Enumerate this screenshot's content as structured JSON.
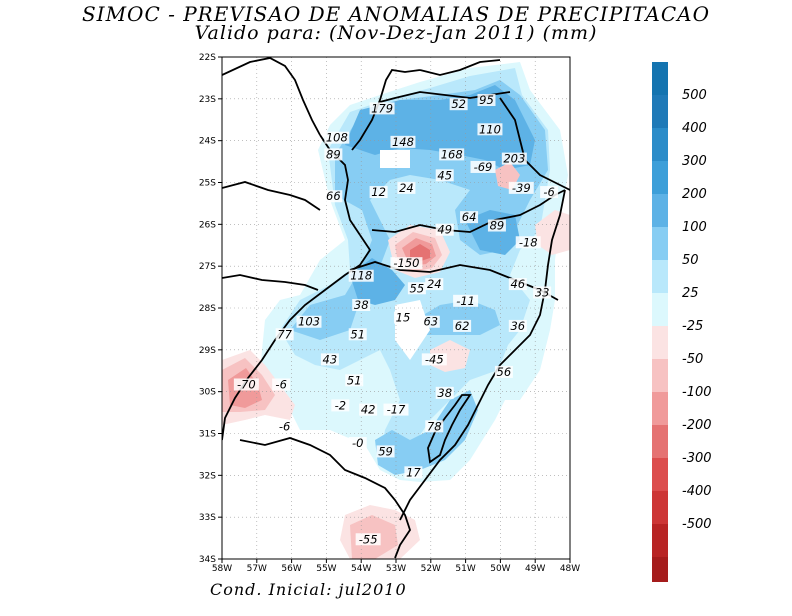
{
  "header": {
    "title": "SIMOC - PREVISAO DE ANOMALIAS DE PRECIPITACAO",
    "subtitle": "Valido para: (Nov-Dez-Jan 2011) (mm)"
  },
  "footer": {
    "text": "Cond. Inicial: jul2010"
  },
  "map": {
    "lat_labels": [
      "22S",
      "23S",
      "24S",
      "25S",
      "26S",
      "27S",
      "28S",
      "29S",
      "30S",
      "31S",
      "32S",
      "33S",
      "34S"
    ],
    "lon_labels": [
      "58W",
      "57W",
      "56W",
      "55W",
      "54W",
      "53W",
      "52W",
      "51W",
      "50W",
      "49W",
      "48W"
    ],
    "contour_labels": [
      {
        "text": "179",
        "lon": -53.4,
        "lat": -23.3
      },
      {
        "text": "52",
        "lon": -51.2,
        "lat": -23.2
      },
      {
        "text": "95",
        "lon": -50.4,
        "lat": -23.1
      },
      {
        "text": "110",
        "lon": -50.3,
        "lat": -23.8
      },
      {
        "text": "108",
        "lon": -54.7,
        "lat": -24.0
      },
      {
        "text": "89",
        "lon": -54.8,
        "lat": -24.4
      },
      {
        "text": "148",
        "lon": -52.8,
        "lat": -24.1
      },
      {
        "text": "168",
        "lon": -51.4,
        "lat": -24.4
      },
      {
        "text": "203",
        "lon": -49.6,
        "lat": -24.5
      },
      {
        "text": "-69",
        "lon": -50.5,
        "lat": -24.7
      },
      {
        "text": "45",
        "lon": -51.6,
        "lat": -24.9
      },
      {
        "text": "24",
        "lon": -52.7,
        "lat": -25.2
      },
      {
        "text": "-39",
        "lon": -49.4,
        "lat": -25.2
      },
      {
        "text": "-6",
        "lon": -48.6,
        "lat": -25.3
      },
      {
        "text": "66",
        "lon": -54.8,
        "lat": -25.4
      },
      {
        "text": "12",
        "lon": -53.5,
        "lat": -25.3
      },
      {
        "text": "64",
        "lon": -50.9,
        "lat": -25.9
      },
      {
        "text": "89",
        "lon": -50.1,
        "lat": -26.1
      },
      {
        "text": "49",
        "lon": -51.6,
        "lat": -26.2
      },
      {
        "text": "-18",
        "lon": -49.2,
        "lat": -26.5
      },
      {
        "text": "-150",
        "lon": -52.7,
        "lat": -27.0
      },
      {
        "text": "118",
        "lon": -54.0,
        "lat": -27.3
      },
      {
        "text": "55",
        "lon": -52.4,
        "lat": -27.6
      },
      {
        "text": "24",
        "lon": -51.9,
        "lat": -27.5
      },
      {
        "text": "46",
        "lon": -49.5,
        "lat": -27.5
      },
      {
        "text": "33",
        "lon": -48.8,
        "lat": -27.7
      },
      {
        "text": "-11",
        "lon": -51.0,
        "lat": -27.9
      },
      {
        "text": "38",
        "lon": -54.0,
        "lat": -28.0
      },
      {
        "text": "77",
        "lon": -56.2,
        "lat": -28.7
      },
      {
        "text": "103",
        "lon": -55.5,
        "lat": -28.4
      },
      {
        "text": "51",
        "lon": -54.1,
        "lat": -28.7
      },
      {
        "text": "15",
        "lon": -52.8,
        "lat": -28.3
      },
      {
        "text": "63",
        "lon": -52.0,
        "lat": -28.4
      },
      {
        "text": "62",
        "lon": -51.1,
        "lat": -28.5
      },
      {
        "text": "36",
        "lon": -49.5,
        "lat": -28.5
      },
      {
        "text": "43",
        "lon": -54.9,
        "lat": -29.3
      },
      {
        "text": "-45",
        "lon": -51.9,
        "lat": -29.3
      },
      {
        "text": "56",
        "lon": -49.9,
        "lat": -29.6
      },
      {
        "text": "51",
        "lon": -54.2,
        "lat": -29.8
      },
      {
        "text": "-70",
        "lon": -57.3,
        "lat": -29.9
      },
      {
        "text": "-6",
        "lon": -56.3,
        "lat": -29.9
      },
      {
        "text": "38",
        "lon": -51.6,
        "lat": -30.1
      },
      {
        "text": "-2",
        "lon": -54.6,
        "lat": -30.4
      },
      {
        "text": "42",
        "lon": -53.8,
        "lat": -30.5
      },
      {
        "text": "-17",
        "lon": -53.0,
        "lat": -30.5
      },
      {
        "text": "78",
        "lon": -51.9,
        "lat": -30.9
      },
      {
        "text": "-6",
        "lon": -56.2,
        "lat": -30.9
      },
      {
        "text": "-0",
        "lon": -54.1,
        "lat": -31.3
      },
      {
        "text": "59",
        "lon": -53.3,
        "lat": -31.5
      },
      {
        "text": "17",
        "lon": -52.5,
        "lat": -32.0
      },
      {
        "text": "-55",
        "lon": -53.8,
        "lat": -33.6
      }
    ]
  },
  "colorbar": {
    "positive": [
      {
        "label": "500",
        "color": "#1f7ab8"
      },
      {
        "label": "400",
        "color": "#2b8cc9"
      },
      {
        "label": "300",
        "color": "#3d9fd9"
      },
      {
        "label": "200",
        "color": "#5db2e6"
      },
      {
        "label": "100",
        "color": "#87cdf3"
      },
      {
        "label": "50",
        "color": "#b9e8fb"
      },
      {
        "label": "25",
        "color": "#dcf8fd"
      }
    ],
    "negative": [
      {
        "label": "-25",
        "color": "#fbe3e3"
      },
      {
        "label": "-50",
        "color": "#f7c2c2"
      },
      {
        "label": "-100",
        "color": "#f09a9a"
      },
      {
        "label": "-200",
        "color": "#e57272"
      },
      {
        "label": "-300",
        "color": "#dc4d4d"
      },
      {
        "label": "-400",
        "color": "#cd3636"
      },
      {
        "label": "-500",
        "color": "#b82424"
      }
    ],
    "top_color": "#1474b0",
    "bottom_color": "#a51c1c"
  },
  "colors": {
    "pos_light": "#dcf8fd",
    "pos_50": "#b9e8fb",
    "pos_100": "#87cdf3",
    "pos_200": "#5db2e6",
    "neg_25": "#fbe3e3",
    "neg_50": "#f7c2c2",
    "neg_100": "#f09a9a",
    "neg_200": "#e57272"
  }
}
